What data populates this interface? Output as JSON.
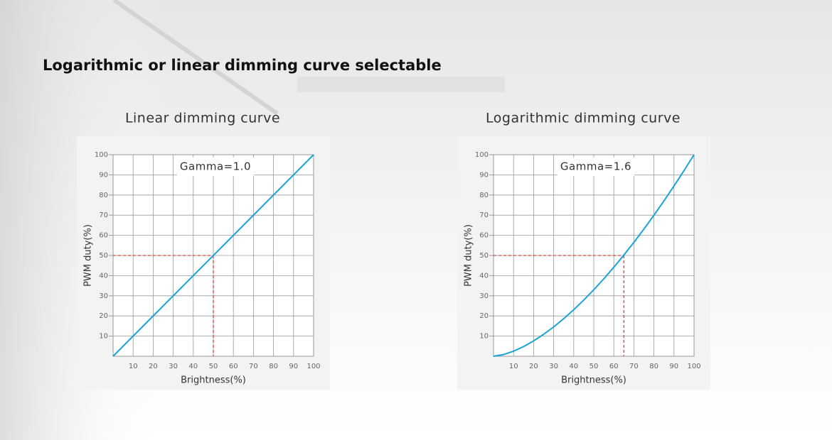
{
  "title": "Logarithmic or linear dimming curve selectable",
  "chart_data": [
    {
      "type": "line",
      "title": "Linear dimming curve",
      "annotation": "Gamma=1.0",
      "x_label": "Brightness(%)",
      "y_label": "PWM duty(%)",
      "x": [
        0,
        100
      ],
      "values": [
        0,
        100
      ],
      "color": "#1ba3d8",
      "xlim": [
        0,
        100
      ],
      "ylim": [
        0,
        100
      ],
      "xticks": [
        10,
        20,
        30,
        40,
        50,
        60,
        70,
        80,
        90,
        100
      ],
      "yticks": [
        10,
        20,
        30,
        40,
        50,
        60,
        70,
        80,
        90,
        100
      ],
      "grid": true,
      "reference": {
        "x": 50,
        "y": 50,
        "color": "#e0403c"
      }
    },
    {
      "type": "line",
      "title": "Logarithmic dimming curve",
      "annotation": "Gamma=1.6",
      "x_label": "Brightness(%)",
      "y_label": "PWM duty(%)",
      "x": [
        0,
        5,
        10,
        15,
        20,
        25,
        30,
        35,
        40,
        45,
        50,
        55,
        60,
        65,
        70,
        75,
        80,
        85,
        90,
        95,
        100
      ],
      "values": [
        0,
        0.83,
        2.51,
        4.81,
        7.62,
        10.88,
        14.57,
        18.64,
        23.09,
        27.87,
        32.99,
        38.42,
        44.16,
        50.2,
        56.51,
        63.11,
        69.98,
        77.11,
        84.49,
        92.12,
        100
      ],
      "color": "#1ba3d8",
      "xlim": [
        0,
        100
      ],
      "ylim": [
        0,
        100
      ],
      "xticks": [
        10,
        20,
        30,
        40,
        50,
        60,
        70,
        80,
        90,
        100
      ],
      "yticks": [
        10,
        20,
        30,
        40,
        50,
        60,
        70,
        80,
        90,
        100
      ],
      "grid": true,
      "reference": {
        "x": 65,
        "y": 50,
        "color": "#e0403c"
      }
    }
  ]
}
